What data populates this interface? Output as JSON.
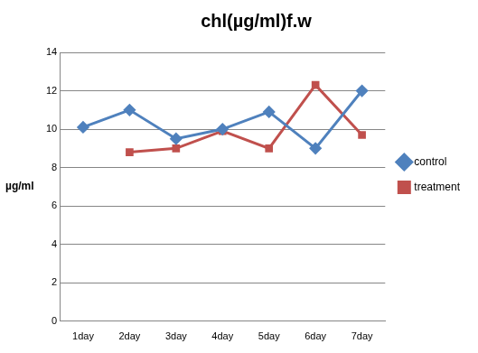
{
  "chart_data": {
    "type": "line",
    "title": "chl(µg/ml)f.w",
    "y_label": "µg/ml",
    "categories": [
      "1day",
      "2day",
      "3day",
      "4day",
      "5day",
      "6day",
      "7day"
    ],
    "series": [
      {
        "name": "control",
        "color": "#4f81bd",
        "marker": "diamond",
        "values": [
          10.1,
          11,
          9.5,
          10,
          10.9,
          9,
          12
        ]
      },
      {
        "name": "treatment",
        "color": "#c0504d",
        "marker": "square",
        "values": [
          null,
          8.8,
          9,
          9.9,
          9,
          12.3,
          9.7
        ]
      }
    ],
    "ylim": [
      0,
      14
    ],
    "yticks": [
      0,
      2,
      4,
      6,
      8,
      10,
      12,
      14
    ],
    "grid": true,
    "legend": "right"
  }
}
